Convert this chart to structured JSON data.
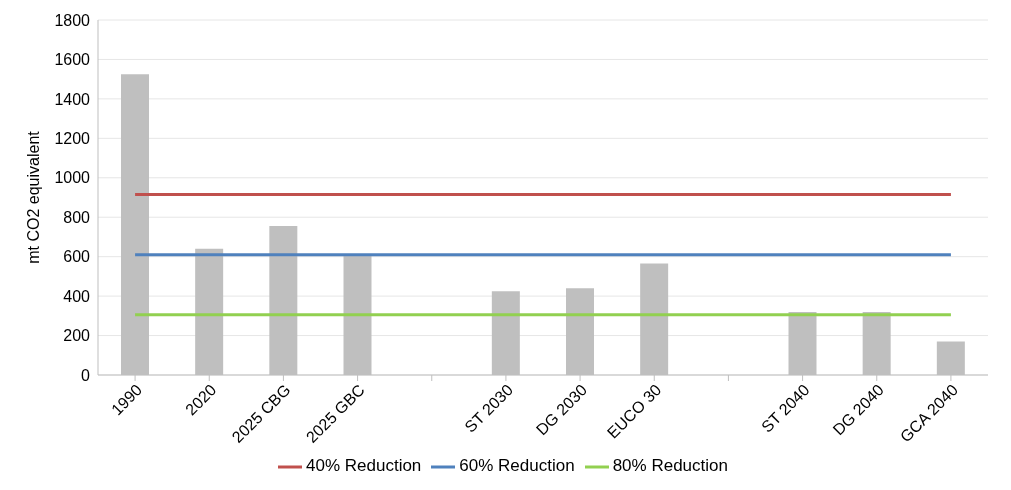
{
  "chart_data": {
    "type": "bar",
    "ylabel": "mt CO2 equivalent",
    "categories": [
      "1990",
      "2020",
      "2025 CBG",
      "2025 GBC",
      null,
      "ST 2030",
      "DG 2030",
      "EUCO 30",
      null,
      "ST 2040",
      "DG 2040",
      "GCA 2040"
    ],
    "series": [
      {
        "color": "#bfbfbf",
        "values": [
          1525,
          640,
          755,
          610,
          null,
          425,
          440,
          565,
          null,
          320,
          320,
          170
        ]
      },
      {
        "type": "line",
        "name": "40% Reduction",
        "color": "#c0504d",
        "values": [
          915,
          915,
          915,
          915,
          915,
          915,
          915,
          915,
          915,
          915,
          915,
          915
        ]
      },
      {
        "type": "line",
        "name": "60% Reduction",
        "color": "#4f81bd",
        "values": [
          610,
          610,
          610,
          610,
          610,
          610,
          610,
          610,
          610,
          610,
          610,
          610
        ]
      },
      {
        "type": "line",
        "name": "80% Reduction",
        "color": "#92d050",
        "values": [
          305,
          305,
          305,
          305,
          305,
          305,
          305,
          305,
          305,
          305,
          305,
          305
        ]
      }
    ],
    "ylim": [
      0,
      1800
    ],
    "yticks": [
      0,
      200,
      400,
      600,
      800,
      1000,
      1200,
      1400,
      1600,
      1800
    ],
    "grid": "y",
    "legend": "bottom",
    "marker": "none"
  }
}
